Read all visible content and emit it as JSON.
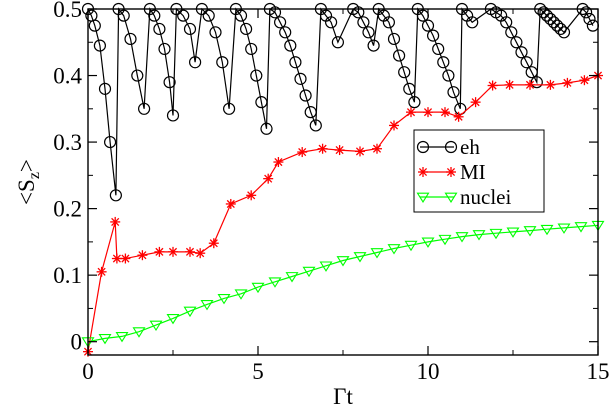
{
  "chart_data": {
    "type": "line",
    "xlabel": "Γt",
    "ylabel_main": "<S",
    "ylabel_sub": "z",
    "ylabel_end": ">",
    "xlim": [
      0,
      15
    ],
    "ylim": [
      -0.02,
      0.5
    ],
    "x_ticks": [
      0,
      5,
      10,
      15
    ],
    "y_ticks": [
      0,
      0.1,
      0.2,
      0.3,
      0.4,
      0.5
    ],
    "x_tick_labels": [
      "0",
      "5",
      "10",
      "15"
    ],
    "y_tick_labels": [
      "0",
      "0.1",
      "0.2",
      "0.3",
      "0.4",
      "0.5"
    ],
    "grid": false,
    "legend_position": "right-middle",
    "series": [
      {
        "name": "eh",
        "color": "#000000",
        "marker": "circle",
        "points": [
          [
            0.0,
            0.5
          ],
          [
            0.1,
            0.49
          ],
          [
            0.2,
            0.475
          ],
          [
            0.35,
            0.445
          ],
          [
            0.5,
            0.38
          ],
          [
            0.65,
            0.3
          ],
          [
            0.82,
            0.22
          ],
          [
            0.9,
            0.5
          ],
          [
            1.05,
            0.49
          ],
          [
            1.25,
            0.455
          ],
          [
            1.45,
            0.4
          ],
          [
            1.65,
            0.35
          ],
          [
            1.82,
            0.5
          ],
          [
            1.95,
            0.49
          ],
          [
            2.1,
            0.47
          ],
          [
            2.25,
            0.44
          ],
          [
            2.4,
            0.39
          ],
          [
            2.5,
            0.34
          ],
          [
            2.6,
            0.5
          ],
          [
            2.8,
            0.49
          ],
          [
            3.0,
            0.47
          ],
          [
            3.15,
            0.42
          ],
          [
            3.35,
            0.5
          ],
          [
            3.55,
            0.49
          ],
          [
            3.75,
            0.465
          ],
          [
            3.95,
            0.42
          ],
          [
            4.15,
            0.35
          ],
          [
            4.35,
            0.5
          ],
          [
            4.5,
            0.49
          ],
          [
            4.65,
            0.47
          ],
          [
            4.8,
            0.44
          ],
          [
            4.95,
            0.4
          ],
          [
            5.1,
            0.36
          ],
          [
            5.25,
            0.32
          ],
          [
            5.35,
            0.5
          ],
          [
            5.5,
            0.495
          ],
          [
            5.65,
            0.48
          ],
          [
            5.8,
            0.465
          ],
          [
            5.95,
            0.445
          ],
          [
            6.1,
            0.42
          ],
          [
            6.25,
            0.395
          ],
          [
            6.4,
            0.37
          ],
          [
            6.55,
            0.345
          ],
          [
            6.7,
            0.325
          ],
          [
            6.85,
            0.5
          ],
          [
            7.0,
            0.49
          ],
          [
            7.15,
            0.48
          ],
          [
            7.35,
            0.45
          ],
          [
            7.8,
            0.5
          ],
          [
            7.95,
            0.495
          ],
          [
            8.1,
            0.48
          ],
          [
            8.25,
            0.465
          ],
          [
            8.4,
            0.445
          ],
          [
            8.55,
            0.5
          ],
          [
            8.7,
            0.49
          ],
          [
            8.85,
            0.48
          ],
          [
            9.0,
            0.455
          ],
          [
            9.15,
            0.43
          ],
          [
            9.3,
            0.405
          ],
          [
            9.45,
            0.38
          ],
          [
            9.6,
            0.36
          ],
          [
            9.7,
            0.5
          ],
          [
            9.85,
            0.49
          ],
          [
            10.0,
            0.475
          ],
          [
            10.15,
            0.46
          ],
          [
            10.3,
            0.44
          ],
          [
            10.45,
            0.42
          ],
          [
            10.6,
            0.4
          ],
          [
            10.75,
            0.375
          ],
          [
            10.95,
            0.35
          ],
          [
            11.0,
            0.5
          ],
          [
            11.15,
            0.49
          ],
          [
            11.3,
            0.48
          ],
          [
            11.85,
            0.5
          ],
          [
            12.0,
            0.495
          ],
          [
            12.15,
            0.49
          ],
          [
            12.3,
            0.48
          ],
          [
            12.45,
            0.465
          ],
          [
            12.6,
            0.45
          ],
          [
            12.75,
            0.435
          ],
          [
            12.9,
            0.42
          ],
          [
            13.05,
            0.405
          ],
          [
            13.2,
            0.39
          ],
          [
            13.3,
            0.5
          ],
          [
            13.4,
            0.495
          ],
          [
            13.5,
            0.49
          ],
          [
            13.6,
            0.485
          ],
          [
            13.7,
            0.48
          ],
          [
            13.8,
            0.475
          ],
          [
            13.9,
            0.47
          ],
          [
            14.0,
            0.465
          ],
          [
            14.55,
            0.5
          ],
          [
            14.65,
            0.495
          ],
          [
            14.75,
            0.485
          ],
          [
            14.85,
            0.475
          ]
        ]
      },
      {
        "name": "MI",
        "color": "#ff0000",
        "marker": "asterisk",
        "points": [
          [
            0.0,
            -0.015
          ],
          [
            0.4,
            0.105
          ],
          [
            0.8,
            0.18
          ],
          [
            0.85,
            0.125
          ],
          [
            1.1,
            0.125
          ],
          [
            1.6,
            0.13
          ],
          [
            2.1,
            0.135
          ],
          [
            2.5,
            0.135
          ],
          [
            3.0,
            0.135
          ],
          [
            3.3,
            0.133
          ],
          [
            3.7,
            0.148
          ],
          [
            4.2,
            0.207
          ],
          [
            4.8,
            0.22
          ],
          [
            5.3,
            0.245
          ],
          [
            5.6,
            0.27
          ],
          [
            6.3,
            0.285
          ],
          [
            6.9,
            0.29
          ],
          [
            7.4,
            0.288
          ],
          [
            8.0,
            0.286
          ],
          [
            8.5,
            0.29
          ],
          [
            9.0,
            0.325
          ],
          [
            9.5,
            0.345
          ],
          [
            10.0,
            0.345
          ],
          [
            10.5,
            0.345
          ],
          [
            10.9,
            0.338
          ],
          [
            11.4,
            0.36
          ],
          [
            11.9,
            0.385
          ],
          [
            12.4,
            0.386
          ],
          [
            13.0,
            0.386
          ],
          [
            13.6,
            0.386
          ],
          [
            14.1,
            0.389
          ],
          [
            14.6,
            0.393
          ],
          [
            15.0,
            0.4
          ]
        ]
      },
      {
        "name": "nuclei",
        "color": "#00ff00",
        "marker": "triangle-down",
        "points": [
          [
            0.0,
            0.0
          ],
          [
            0.5,
            0.005
          ],
          [
            1.0,
            0.008
          ],
          [
            1.5,
            0.015
          ],
          [
            2.0,
            0.025
          ],
          [
            2.5,
            0.035
          ],
          [
            3.0,
            0.046
          ],
          [
            3.5,
            0.056
          ],
          [
            4.0,
            0.065
          ],
          [
            4.5,
            0.072
          ],
          [
            5.0,
            0.082
          ],
          [
            5.5,
            0.09
          ],
          [
            6.0,
            0.098
          ],
          [
            6.5,
            0.106
          ],
          [
            7.0,
            0.114
          ],
          [
            7.5,
            0.122
          ],
          [
            8.0,
            0.128
          ],
          [
            8.5,
            0.134
          ],
          [
            9.0,
            0.14
          ],
          [
            9.5,
            0.145
          ],
          [
            10.0,
            0.15
          ],
          [
            10.5,
            0.154
          ],
          [
            11.0,
            0.158
          ],
          [
            11.5,
            0.161
          ],
          [
            12.0,
            0.163
          ],
          [
            12.5,
            0.165
          ],
          [
            13.0,
            0.167
          ],
          [
            13.5,
            0.169
          ],
          [
            14.0,
            0.171
          ],
          [
            14.5,
            0.173
          ],
          [
            15.0,
            0.175
          ]
        ]
      }
    ]
  }
}
